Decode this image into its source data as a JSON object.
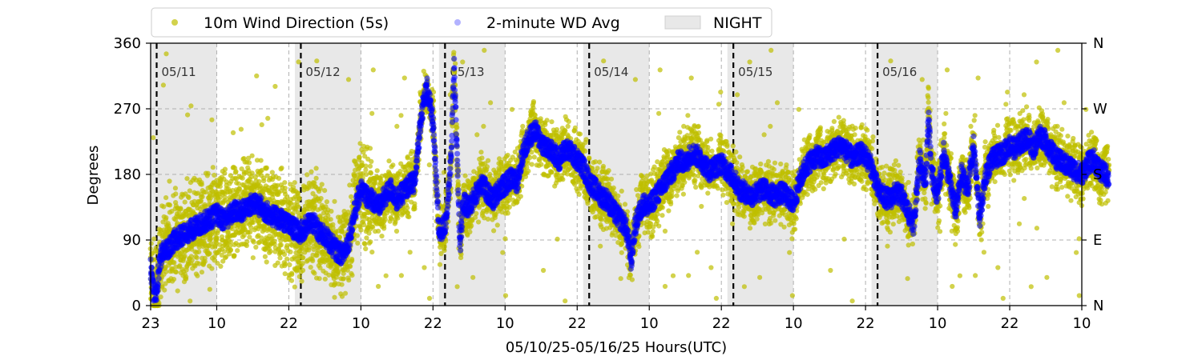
{
  "chart_data": {
    "type": "scatter",
    "xlabel": "05/10/25-05/16/25  Hours(UTC)",
    "ylabel": "Degrees",
    "ylim": [
      0,
      360
    ],
    "xlim_hours": [
      23,
      178
    ],
    "y_ticks": [
      "0",
      "90",
      "180",
      "270",
      "360"
    ],
    "y_tick_values": [
      0,
      90,
      180,
      270,
      360
    ],
    "right_ticks": [
      "N",
      "E",
      "S",
      "W",
      "N"
    ],
    "x_ticks": [
      "23",
      "10",
      "22",
      "10",
      "22",
      "10",
      "22",
      "10",
      "22",
      "10",
      "22",
      "10",
      "22",
      "10"
    ],
    "x_tick_hours": [
      23,
      34,
      46,
      58,
      70,
      82,
      94,
      106,
      118,
      130,
      142,
      154,
      166,
      178
    ],
    "grid": true,
    "legend_position": "top",
    "legend": {
      "series1": "10m Wind Direction (5s)",
      "series2": "2-minute WD Avg",
      "night": "NIGHT"
    },
    "day_markers": [
      {
        "label": "05/11",
        "hour": 24
      },
      {
        "label": "05/12",
        "hour": 48
      },
      {
        "label": "05/13",
        "hour": 72
      },
      {
        "label": "05/14",
        "hour": 96
      },
      {
        "label": "05/15",
        "hour": 120
      },
      {
        "label": "05/16",
        "hour": 144
      }
    ],
    "night_shading": [
      [
        23,
        34
      ],
      [
        47,
        58
      ],
      [
        71,
        82
      ],
      [
        95,
        106
      ],
      [
        119,
        130
      ],
      [
        143,
        154
      ]
    ],
    "series": [
      {
        "name": "10m Wind Direction (5s)",
        "color": "#bfbf00"
      },
      {
        "name": "2-minute WD Avg",
        "color": "#0000ff"
      }
    ],
    "avg_trace": [
      [
        23.0,
        50
      ],
      [
        23.5,
        20
      ],
      [
        24.0,
        15
      ],
      [
        24.5,
        60
      ],
      [
        25.0,
        75
      ],
      [
        26.0,
        80
      ],
      [
        27.0,
        90
      ],
      [
        28.0,
        95
      ],
      [
        29.0,
        100
      ],
      [
        30.0,
        105
      ],
      [
        31.0,
        110
      ],
      [
        32.0,
        115
      ],
      [
        33.0,
        120
      ],
      [
        34.0,
        125
      ],
      [
        35.0,
        118
      ],
      [
        36.0,
        122
      ],
      [
        37.0,
        130
      ],
      [
        38.0,
        128
      ],
      [
        39.0,
        135
      ],
      [
        40.0,
        140
      ],
      [
        41.0,
        138
      ],
      [
        42.0,
        130
      ],
      [
        43.0,
        125
      ],
      [
        44.0,
        120
      ],
      [
        45.0,
        118
      ],
      [
        46.0,
        110
      ],
      [
        47.0,
        105
      ],
      [
        48.0,
        100
      ],
      [
        49.0,
        110
      ],
      [
        50.0,
        115
      ],
      [
        51.0,
        100
      ],
      [
        52.0,
        95
      ],
      [
        53.0,
        85
      ],
      [
        54.0,
        75
      ],
      [
        55.0,
        70
      ],
      [
        56.0,
        90
      ],
      [
        57.0,
        130
      ],
      [
        58.0,
        160
      ],
      [
        59.0,
        150
      ],
      [
        60.0,
        145
      ],
      [
        61.0,
        135
      ],
      [
        62.0,
        150
      ],
      [
        63.0,
        160
      ],
      [
        64.0,
        145
      ],
      [
        65.0,
        155
      ],
      [
        66.0,
        165
      ],
      [
        67.0,
        170
      ],
      [
        68.0,
        260
      ],
      [
        69.0,
        300
      ],
      [
        70.0,
        250
      ],
      [
        71.0,
        100
      ],
      [
        72.0,
        110
      ],
      [
        72.5,
        150
      ],
      [
        73.0,
        200
      ],
      [
        73.5,
        330
      ],
      [
        74.0,
        210
      ],
      [
        74.5,
        80
      ],
      [
        75.0,
        140
      ],
      [
        76.0,
        135
      ],
      [
        77.0,
        150
      ],
      [
        78.0,
        170
      ],
      [
        79.0,
        155
      ],
      [
        80.0,
        145
      ],
      [
        81.0,
        160
      ],
      [
        82.0,
        165
      ],
      [
        83.0,
        175
      ],
      [
        84.0,
        170
      ],
      [
        85.0,
        210
      ],
      [
        86.0,
        230
      ],
      [
        87.0,
        240
      ],
      [
        88.0,
        225
      ],
      [
        89.0,
        215
      ],
      [
        90.0,
        210
      ],
      [
        91.0,
        200
      ],
      [
        92.0,
        215
      ],
      [
        93.0,
        210
      ],
      [
        94.0,
        200
      ],
      [
        95.0,
        190
      ],
      [
        96.0,
        170
      ],
      [
        97.0,
        160
      ],
      [
        98.0,
        150
      ],
      [
        99.0,
        145
      ],
      [
        100.0,
        130
      ],
      [
        101.0,
        120
      ],
      [
        102.0,
        110
      ],
      [
        102.5,
        90
      ],
      [
        103.0,
        60
      ],
      [
        103.5,
        100
      ],
      [
        104.0,
        120
      ],
      [
        105.0,
        140
      ],
      [
        106.0,
        135
      ],
      [
        107.0,
        150
      ],
      [
        108.0,
        160
      ],
      [
        109.0,
        175
      ],
      [
        110.0,
        185
      ],
      [
        111.0,
        200
      ],
      [
        112.0,
        195
      ],
      [
        113.0,
        210
      ],
      [
        114.0,
        205
      ],
      [
        115.0,
        195
      ],
      [
        116.0,
        185
      ],
      [
        117.0,
        190
      ],
      [
        118.0,
        195
      ],
      [
        119.0,
        185
      ],
      [
        120.0,
        175
      ],
      [
        121.0,
        160
      ],
      [
        122.0,
        155
      ],
      [
        123.0,
        150
      ],
      [
        124.0,
        155
      ],
      [
        125.0,
        160
      ],
      [
        126.0,
        155
      ],
      [
        127.0,
        150
      ],
      [
        128.0,
        155
      ],
      [
        129.0,
        150
      ],
      [
        130.0,
        140
      ],
      [
        131.0,
        170
      ],
      [
        132.0,
        190
      ],
      [
        133.0,
        200
      ],
      [
        134.0,
        205
      ],
      [
        135.0,
        200
      ],
      [
        136.0,
        210
      ],
      [
        137.0,
        215
      ],
      [
        138.0,
        220
      ],
      [
        139.0,
        210
      ],
      [
        140.0,
        200
      ],
      [
        141.0,
        210
      ],
      [
        142.0,
        205
      ],
      [
        143.0,
        190
      ],
      [
        144.0,
        160
      ],
      [
        145.0,
        150
      ],
      [
        146.0,
        145
      ],
      [
        147.0,
        155
      ],
      [
        148.0,
        150
      ],
      [
        149.0,
        130
      ],
      [
        150.0,
        110
      ],
      [
        151.0,
        200
      ],
      [
        152.0,
        170
      ],
      [
        152.5,
        260
      ],
      [
        153.0,
        180
      ],
      [
        154.0,
        150
      ],
      [
        155.0,
        210
      ],
      [
        156.0,
        170
      ],
      [
        157.0,
        130
      ],
      [
        158.0,
        180
      ],
      [
        159.0,
        160
      ],
      [
        160.0,
        220
      ],
      [
        161.0,
        120
      ],
      [
        162.0,
        180
      ],
      [
        163.0,
        200
      ],
      [
        164.0,
        205
      ],
      [
        165.0,
        210
      ],
      [
        166.0,
        220
      ],
      [
        167.0,
        215
      ],
      [
        168.0,
        225
      ],
      [
        169.0,
        230
      ],
      [
        170.0,
        215
      ],
      [
        171.0,
        235
      ],
      [
        172.0,
        225
      ],
      [
        173.0,
        210
      ],
      [
        174.0,
        200
      ],
      [
        175.0,
        195
      ],
      [
        176.0,
        190
      ],
      [
        177.0,
        185
      ],
      [
        178.0,
        180
      ],
      [
        179.0,
        195
      ],
      [
        180.0,
        200
      ],
      [
        181.0,
        185
      ],
      [
        182.0,
        180
      ],
      [
        182.5,
        175
      ]
    ]
  }
}
